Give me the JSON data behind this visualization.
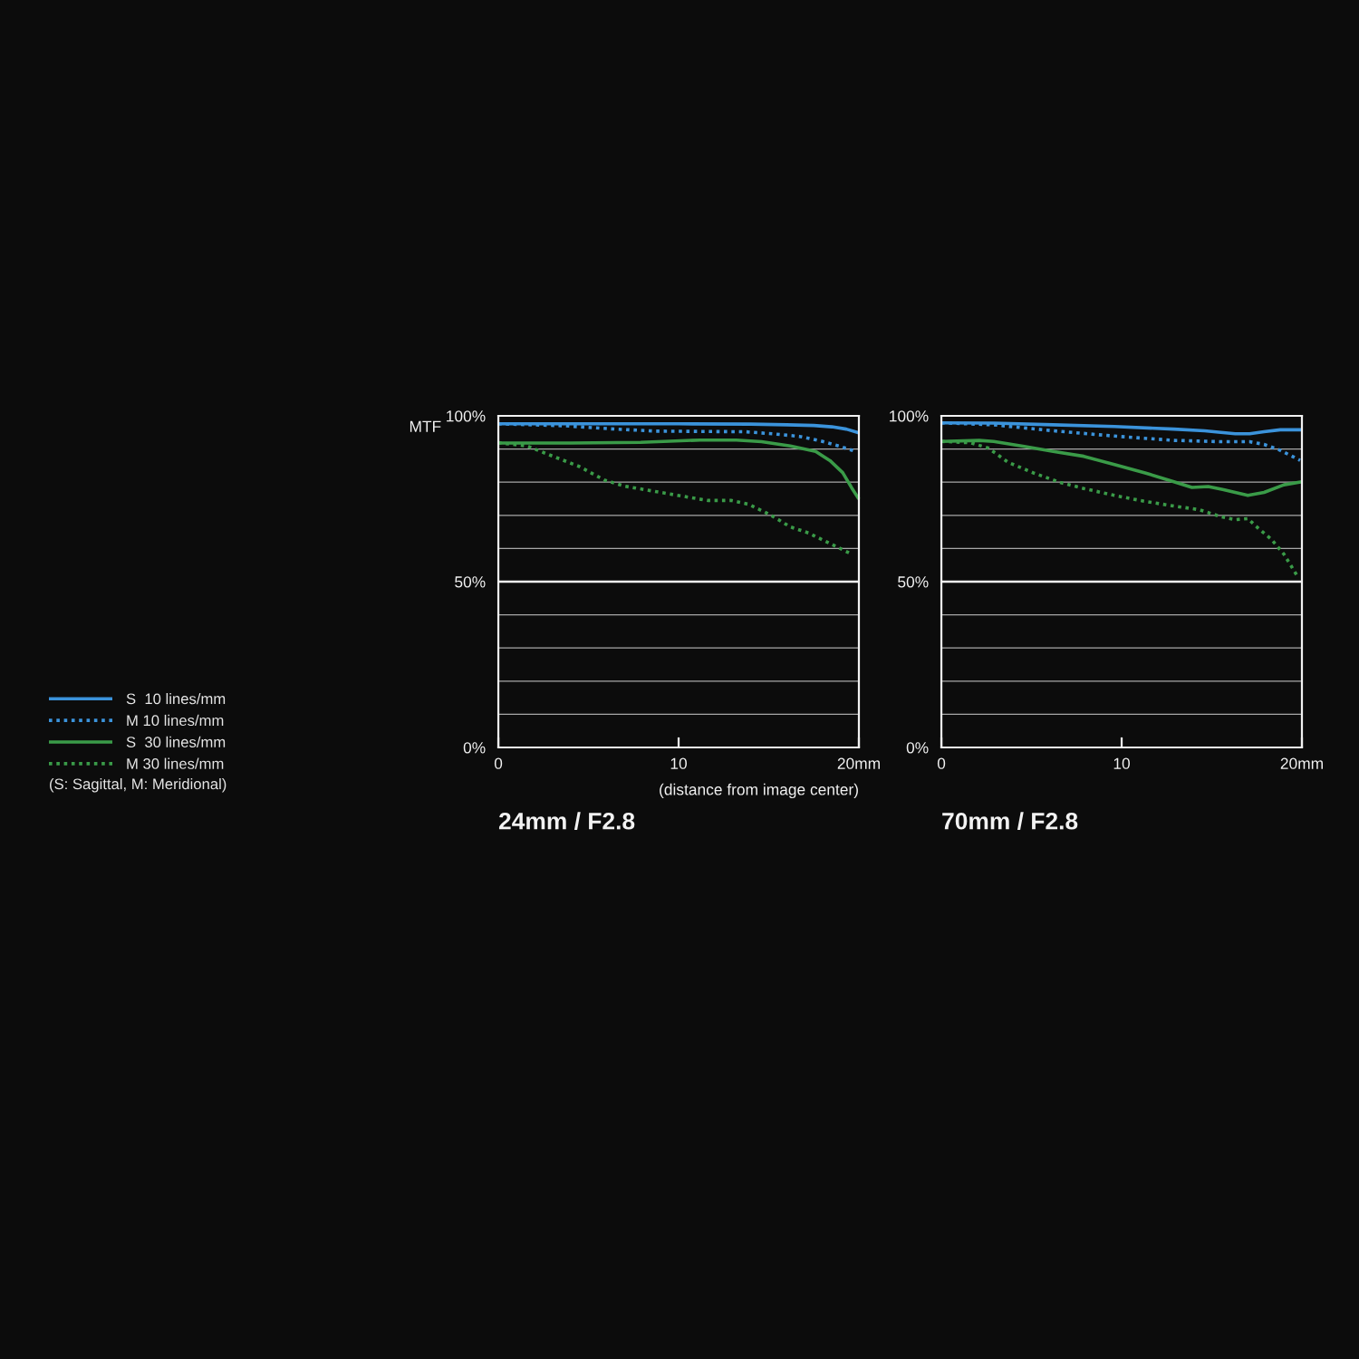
{
  "chart_data": [
    {
      "type": "line",
      "title": "24mm / F2.8",
      "xlabel": "(distance from image center)",
      "ylabel": "MTF",
      "series": [
        {
          "name": "S  10 lines/mm",
          "color": "#3b93db",
          "line_style": "solid",
          "x": [
            0,
            5,
            10,
            14,
            16,
            17.5,
            18.5,
            19.3,
            20
          ],
          "values": [
            97.6,
            97.6,
            97.6,
            97.5,
            97.3,
            97.1,
            96.7,
            96.0,
            94.9
          ]
        },
        {
          "name": "M 10 lines/mm",
          "color": "#3b93db",
          "line_style": "dotted",
          "x": [
            0,
            3.7,
            6.2,
            8.7,
            11.2,
            13.7,
            15.4,
            16.7,
            17.9,
            18.9,
            19.8
          ],
          "values": [
            97.6,
            97.0,
            96.1,
            95.4,
            95.3,
            95.2,
            94.5,
            93.8,
            92.4,
            90.9,
            89.3
          ]
        },
        {
          "name": "S  30 lines/mm",
          "color": "#3a9b48",
          "line_style": "solid",
          "x": [
            0,
            4,
            7.9,
            11.2,
            13.2,
            14.6,
            16.2,
            17.6,
            18.4,
            19.1,
            19.6,
            20
          ],
          "values": [
            91.8,
            91.8,
            92.0,
            92.7,
            92.7,
            92.2,
            90.9,
            89.3,
            86.5,
            82.9,
            78.3,
            74.9
          ]
        },
        {
          "name": "M 30 lines/mm",
          "color": "#3a9b48",
          "line_style": "dotted",
          "x": [
            0,
            1.6,
            2.8,
            4.5,
            5.9,
            7,
            8.7,
            10.4,
            11.6,
            12.9,
            13.9,
            15.1,
            16.2,
            17.2,
            18.4,
            19.6
          ],
          "values": [
            91.9,
            90.9,
            88.3,
            84.7,
            80.6,
            78.8,
            77.2,
            75.6,
            74.5,
            74.5,
            73.3,
            70.1,
            66.5,
            64.7,
            61.5,
            58.3
          ]
        }
      ],
      "xlim": [
        0,
        20
      ],
      "ylim": [
        0,
        100
      ],
      "xticks": [
        0,
        10,
        {
          "value": 20,
          "label": "20mm"
        }
      ],
      "yticks": [
        {
          "value": 0,
          "label": "0%"
        },
        {
          "value": 10,
          "label": null
        },
        {
          "value": 20,
          "label": null
        },
        {
          "value": 30,
          "label": null
        },
        {
          "value": 40,
          "label": null
        },
        {
          "value": 50,
          "label": "50%"
        },
        {
          "value": 60,
          "label": null
        },
        {
          "value": 70,
          "label": null
        },
        {
          "value": 80,
          "label": null
        },
        {
          "value": 90,
          "label": null
        },
        {
          "value": 100,
          "label": "100%"
        }
      ],
      "ref_lines": [
        {
          "axis": "y",
          "value": 50,
          "color": "#f2f2f2"
        }
      ],
      "grid": "y",
      "legend": "left",
      "marker": "none",
      "annotations": [
        "(S: Sagittal, M: Meridional)"
      ]
    },
    {
      "type": "line",
      "title": "70mm / F2.8",
      "series": [
        {
          "color": "#3b93db",
          "line_style": "solid",
          "x": [
            0,
            2.9,
            6.2,
            9.6,
            12.9,
            14.6,
            15.5,
            16.3,
            17.1,
            17.9,
            18.8,
            20
          ],
          "values": [
            97.9,
            97.8,
            97.3,
            96.8,
            96.0,
            95.5,
            95.0,
            94.6,
            94.6,
            95.2,
            95.8,
            95.8
          ]
        },
        {
          "color": "#3b93db",
          "line_style": "dotted",
          "x": [
            0,
            2.9,
            6.2,
            9.6,
            12.9,
            15.5,
            17.1,
            17.9,
            18.8,
            19.9
          ],
          "values": [
            97.9,
            97.3,
            95.5,
            93.9,
            92.6,
            92.2,
            92.2,
            91.4,
            89.6,
            86.6
          ]
        },
        {
          "color": "#3a9b48",
          "line_style": "solid",
          "x": [
            0,
            2.1,
            2.9,
            4.6,
            6.2,
            7.9,
            9.6,
            11.3,
            12.9,
            13.9,
            14.8,
            15.6,
            17,
            17.9,
            19,
            20
          ],
          "values": [
            92.3,
            92.6,
            92.3,
            90.8,
            89.3,
            87.8,
            85.3,
            82.8,
            80.1,
            78.4,
            78.7,
            77.8,
            76.0,
            76.9,
            79.2,
            80.1
          ]
        },
        {
          "color": "#3a9b48",
          "line_style": "dotted",
          "x": [
            0,
            1.6,
            2.6,
            3.7,
            5.1,
            6.6,
            7.9,
            9.6,
            11.3,
            12.9,
            14.3,
            15.5,
            16.3,
            17,
            17.6,
            18.3,
            19,
            19.8
          ],
          "values": [
            92.3,
            91.9,
            90.3,
            86.0,
            82.8,
            79.9,
            78.1,
            76.0,
            74.2,
            72.8,
            71.7,
            69.6,
            68.7,
            69.0,
            66.0,
            62.8,
            58.3,
            51.2
          ]
        }
      ],
      "xlim": [
        0,
        20
      ],
      "ylim": [
        0,
        100
      ],
      "xticks": [
        0,
        10,
        {
          "value": 20,
          "label": "20mm"
        }
      ],
      "yticks": [
        {
          "value": 0,
          "label": "0%"
        },
        {
          "value": 10,
          "label": null
        },
        {
          "value": 20,
          "label": null
        },
        {
          "value": 30,
          "label": null
        },
        {
          "value": 40,
          "label": null
        },
        {
          "value": 50,
          "label": "50%"
        },
        {
          "value": 60,
          "label": null
        },
        {
          "value": 70,
          "label": null
        },
        {
          "value": 80,
          "label": null
        },
        {
          "value": 90,
          "label": null
        },
        {
          "value": 100,
          "label": "100%"
        }
      ],
      "ref_lines": [
        {
          "axis": "y",
          "value": 50,
          "color": "#f2f2f2"
        }
      ],
      "grid": "y",
      "marker": "none"
    }
  ]
}
